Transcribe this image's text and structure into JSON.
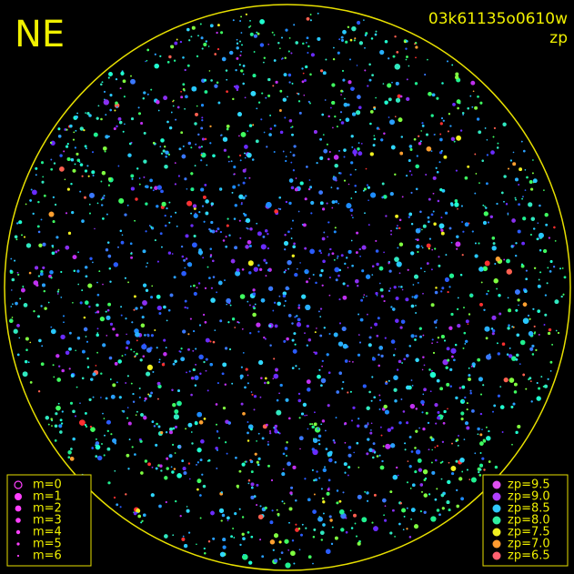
{
  "header": {
    "quadrant": "NE",
    "frame_id": "03k61135o0610w",
    "color_key": "zp"
  },
  "magnitude_legend": [
    {
      "label": "m=0"
    },
    {
      "label": "m=1"
    },
    {
      "label": "m=2"
    },
    {
      "label": "m=3"
    },
    {
      "label": "m=4"
    },
    {
      "label": "m=5"
    },
    {
      "label": "m=6"
    }
  ],
  "zp_legend": [
    {
      "label": "zp=9.5",
      "color": "#e050f0"
    },
    {
      "label": "zp=9.0",
      "color": "#b040ff"
    },
    {
      "label": "zp=8.5",
      "color": "#30c8ff"
    },
    {
      "label": "zp=8.0",
      "color": "#30f0a0"
    },
    {
      "label": "zp=7.5",
      "color": "#f0f020"
    },
    {
      "label": "zp=7.0",
      "color": "#ff9a30"
    },
    {
      "label": "zp=6.5",
      "color": "#ff6070"
    }
  ]
}
